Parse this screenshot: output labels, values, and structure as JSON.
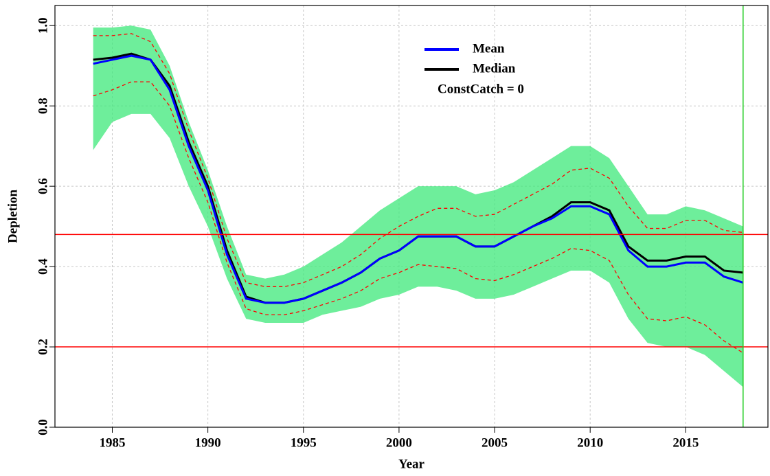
{
  "chart_data": {
    "type": "line",
    "xlabel": "Year",
    "ylabel": "Depletion",
    "annotation": "ConstCatch = 0",
    "x": [
      1984,
      1985,
      1986,
      1987,
      1988,
      1989,
      1990,
      1991,
      1992,
      1993,
      1994,
      1995,
      1996,
      1997,
      1998,
      1999,
      2000,
      2001,
      2002,
      2003,
      2004,
      2005,
      2006,
      2007,
      2008,
      2009,
      2010,
      2011,
      2012,
      2013,
      2014,
      2015,
      2016,
      2017,
      2018
    ],
    "band": {
      "color": "#3ee87a",
      "upper": [
        0.995,
        0.995,
        1.0,
        0.99,
        0.9,
        0.76,
        0.64,
        0.5,
        0.38,
        0.37,
        0.38,
        0.4,
        0.43,
        0.46,
        0.5,
        0.54,
        0.57,
        0.6,
        0.6,
        0.6,
        0.58,
        0.59,
        0.61,
        0.64,
        0.67,
        0.7,
        0.7,
        0.67,
        0.6,
        0.53,
        0.53,
        0.55,
        0.54,
        0.52,
        0.5
      ],
      "lower": [
        0.69,
        0.76,
        0.78,
        0.78,
        0.72,
        0.6,
        0.5,
        0.37,
        0.27,
        0.26,
        0.26,
        0.26,
        0.28,
        0.29,
        0.3,
        0.32,
        0.33,
        0.35,
        0.35,
        0.34,
        0.32,
        0.32,
        0.33,
        0.35,
        0.37,
        0.39,
        0.39,
        0.36,
        0.27,
        0.21,
        0.2,
        0.2,
        0.18,
        0.14,
        0.1
      ]
    },
    "series": [
      {
        "color": "#ff0000",
        "style": "dashed",
        "values": [
          0.975,
          0.975,
          0.98,
          0.96,
          0.88,
          0.74,
          0.62,
          0.47,
          0.36,
          0.35,
          0.35,
          0.36,
          0.38,
          0.4,
          0.43,
          0.47,
          0.5,
          0.525,
          0.545,
          0.545,
          0.525,
          0.53,
          0.555,
          0.58,
          0.605,
          0.64,
          0.645,
          0.62,
          0.55,
          0.495,
          0.495,
          0.515,
          0.515,
          0.49,
          0.485
        ]
      },
      {
        "color": "#ff0000",
        "style": "dashed",
        "values": [
          0.825,
          0.84,
          0.86,
          0.86,
          0.8,
          0.67,
          0.56,
          0.41,
          0.295,
          0.28,
          0.28,
          0.29,
          0.305,
          0.32,
          0.34,
          0.37,
          0.385,
          0.405,
          0.4,
          0.395,
          0.37,
          0.365,
          0.38,
          0.4,
          0.42,
          0.445,
          0.44,
          0.415,
          0.33,
          0.27,
          0.265,
          0.275,
          0.255,
          0.215,
          0.185
        ]
      },
      {
        "name": "Median",
        "color": "#000000",
        "style": "solid",
        "values": [
          0.915,
          0.92,
          0.93,
          0.915,
          0.85,
          0.71,
          0.6,
          0.44,
          0.325,
          0.31,
          0.31,
          0.32,
          0.34,
          0.36,
          0.385,
          0.42,
          0.44,
          0.475,
          0.475,
          0.475,
          0.45,
          0.45,
          0.475,
          0.5,
          0.525,
          0.56,
          0.56,
          0.54,
          0.45,
          0.415,
          0.415,
          0.425,
          0.425,
          0.39,
          0.385
        ]
      },
      {
        "name": "Mean",
        "color": "#0000ff",
        "style": "solid",
        "values": [
          0.905,
          0.915,
          0.925,
          0.915,
          0.84,
          0.7,
          0.59,
          0.43,
          0.32,
          0.31,
          0.31,
          0.32,
          0.34,
          0.36,
          0.385,
          0.42,
          0.44,
          0.475,
          0.475,
          0.475,
          0.45,
          0.45,
          0.475,
          0.5,
          0.52,
          0.55,
          0.55,
          0.53,
          0.44,
          0.4,
          0.4,
          0.41,
          0.41,
          0.375,
          0.36
        ]
      }
    ],
    "legend_order": [
      "Mean",
      "Median"
    ],
    "hlines": [
      {
        "value": 0.48,
        "color": "#ff0000"
      },
      {
        "value": 0.2,
        "color": "#ff0000"
      }
    ],
    "vlines": [
      {
        "value": 2018,
        "color": "#22cc22"
      }
    ],
    "xlim": [
      1982,
      2019.3
    ],
    "xticks": [
      1985,
      1990,
      1995,
      2000,
      2005,
      2010,
      2015
    ],
    "ylim": [
      0,
      1.05
    ],
    "yticks": [
      {
        "value": 0,
        "label": "0.0"
      },
      0.2,
      0.4,
      0.6,
      0.8,
      {
        "value": 1,
        "label": "1.0"
      }
    ],
    "grid": true
  }
}
